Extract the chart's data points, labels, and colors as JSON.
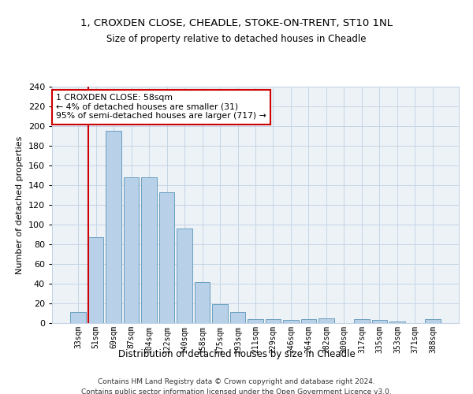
{
  "title1": "1, CROXDEN CLOSE, CHEADLE, STOKE-ON-TRENT, ST10 1NL",
  "title2": "Size of property relative to detached houses in Cheadle",
  "xlabel": "Distribution of detached houses by size in Cheadle",
  "ylabel": "Number of detached properties",
  "bar_color": "#b8d0e8",
  "bar_edge_color": "#6a9fc0",
  "categories": [
    "33sqm",
    "51sqm",
    "69sqm",
    "87sqm",
    "104sqm",
    "122sqm",
    "140sqm",
    "158sqm",
    "175sqm",
    "193sqm",
    "211sqm",
    "229sqm",
    "246sqm",
    "264sqm",
    "282sqm",
    "300sqm",
    "317sqm",
    "335sqm",
    "353sqm",
    "371sqm",
    "388sqm"
  ],
  "values": [
    11,
    87,
    195,
    148,
    148,
    133,
    96,
    42,
    19,
    11,
    4,
    4,
    3,
    4,
    5,
    0,
    4,
    3,
    2,
    0,
    4
  ],
  "vline_index": 1,
  "vline_color": "#cc0000",
  "annotation_text": "1 CROXDEN CLOSE: 58sqm\n← 4% of detached houses are smaller (31)\n95% of semi-detached houses are larger (717) →",
  "annotation_box_color": "#ffffff",
  "annotation_box_edge": "#cc0000",
  "ylim": [
    0,
    240
  ],
  "yticks": [
    0,
    20,
    40,
    60,
    80,
    100,
    120,
    140,
    160,
    180,
    200,
    220,
    240
  ],
  "footer1": "Contains HM Land Registry data © Crown copyright and database right 2024.",
  "footer2": "Contains public sector information licensed under the Open Government Licence v3.0.",
  "plot_bg_color": "#edf2f7",
  "grid_color": "#c5d5e5"
}
